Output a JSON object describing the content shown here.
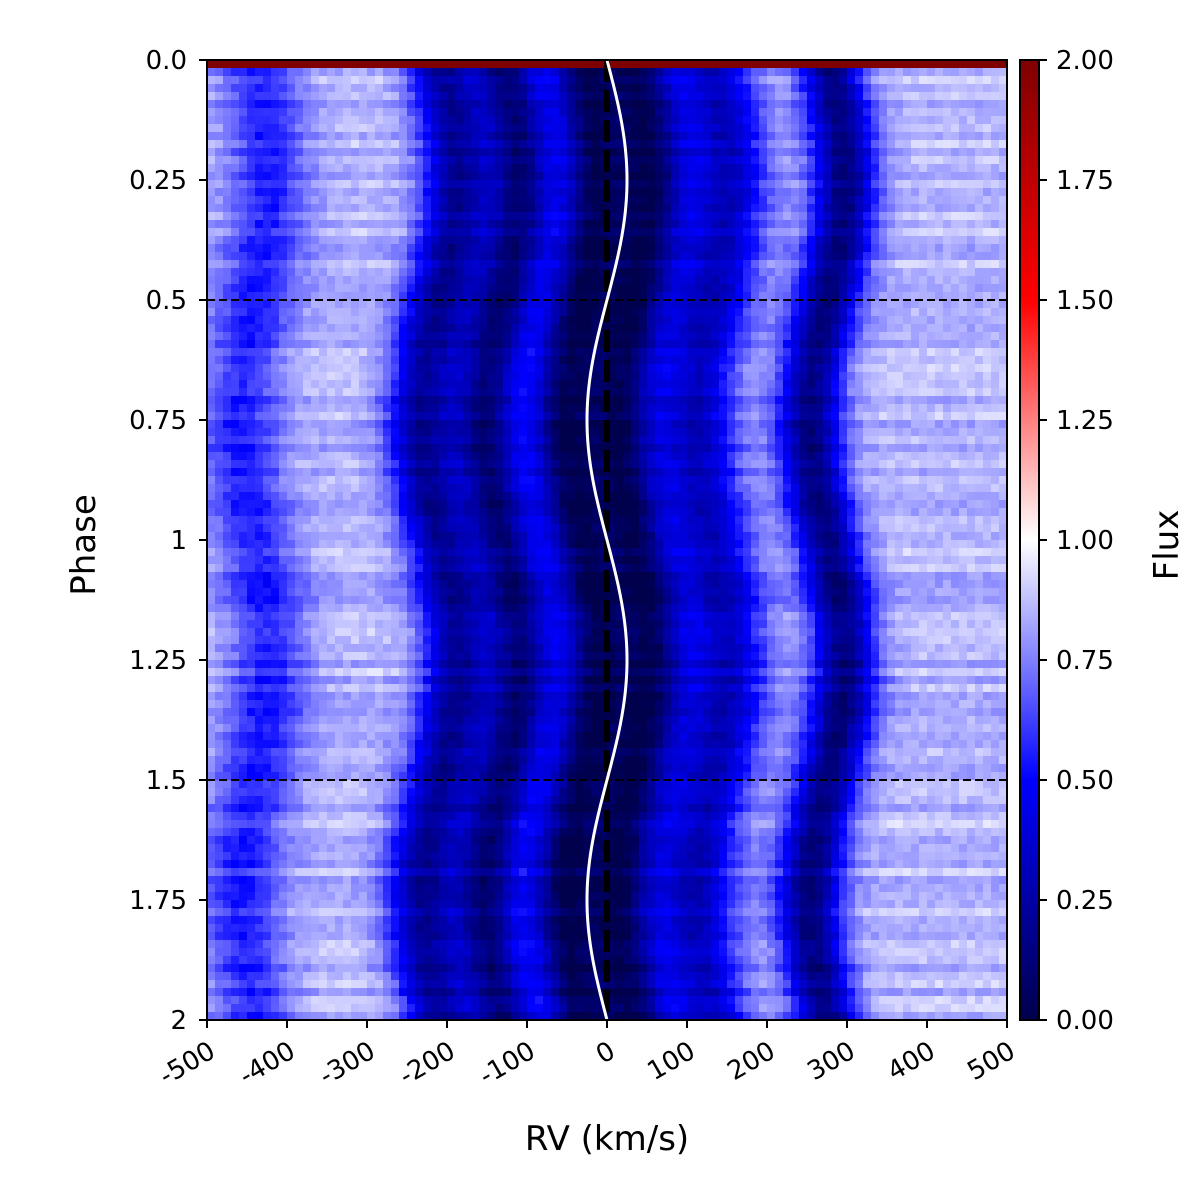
{
  "chart_data": {
    "type": "heatmap",
    "title": "",
    "xlabel": "RV (km/s)",
    "ylabel": "Phase",
    "xlim": [
      -500,
      500
    ],
    "ylim": [
      0,
      2
    ],
    "y_inverted": true,
    "x_ticks": [
      -500,
      -400,
      -300,
      -200,
      -100,
      0,
      100,
      200,
      300,
      400,
      500
    ],
    "x_tick_labels": [
      "-500",
      "-400",
      "-300",
      "-200",
      "-100",
      "0",
      "100",
      "200",
      "300",
      "400",
      "500"
    ],
    "y_ticks": [
      0,
      0.25,
      0.5,
      0.75,
      1,
      1.25,
      1.5,
      1.75,
      2
    ],
    "y_tick_labels": [
      "0.0",
      "0.25",
      "0.5",
      "0.75",
      "1",
      "1.25",
      "1.5",
      "1.75",
      "2"
    ],
    "colorbar": {
      "label": "Flux",
      "range": [
        0,
        2
      ],
      "ticks": [
        0,
        0.25,
        0.5,
        0.75,
        1,
        1.25,
        1.5,
        1.75,
        2
      ],
      "tick_labels": [
        "0.00",
        "0.25",
        "0.50",
        "0.75",
        "1.00",
        "1.25",
        "1.50",
        "1.75",
        "2.00"
      ],
      "colormap": "seismic",
      "colors": [
        "#00004c",
        "#0000ff",
        "#ffffff",
        "#ff0000",
        "#7f0000"
      ]
    },
    "absorption_features": [
      {
        "center_rv": -440,
        "depth": 0.3,
        "width": 35,
        "amplitude": 18
      },
      {
        "center_rv": -210,
        "depth": 0.65,
        "width": 30,
        "amplitude": 22
      },
      {
        "center_rv": -130,
        "depth": 0.72,
        "width": 28,
        "amplitude": 22
      },
      {
        "center_rv": -35,
        "depth": 0.78,
        "width": 30,
        "amplitude": 20
      },
      {
        "center_rv": 35,
        "depth": 0.78,
        "width": 30,
        "amplitude": 20
      },
      {
        "center_rv": 130,
        "depth": 0.55,
        "width": 35,
        "amplitude": 20
      },
      {
        "center_rv": 275,
        "depth": 0.72,
        "width": 28,
        "amplitude": 22
      }
    ],
    "rv_curve": {
      "color": "#ffffff",
      "offset": 0,
      "semi_amplitude": 25,
      "phase_min_rv": 0.75,
      "phase_max_rv": 0.25
    },
    "reference_lines": {
      "vertical_rv": 0,
      "vertical_style": "black dashed",
      "horizontal_phases": [
        0.5,
        1.5
      ],
      "horizontal_style": "black dashed"
    },
    "top_row_flux": 2.0
  }
}
